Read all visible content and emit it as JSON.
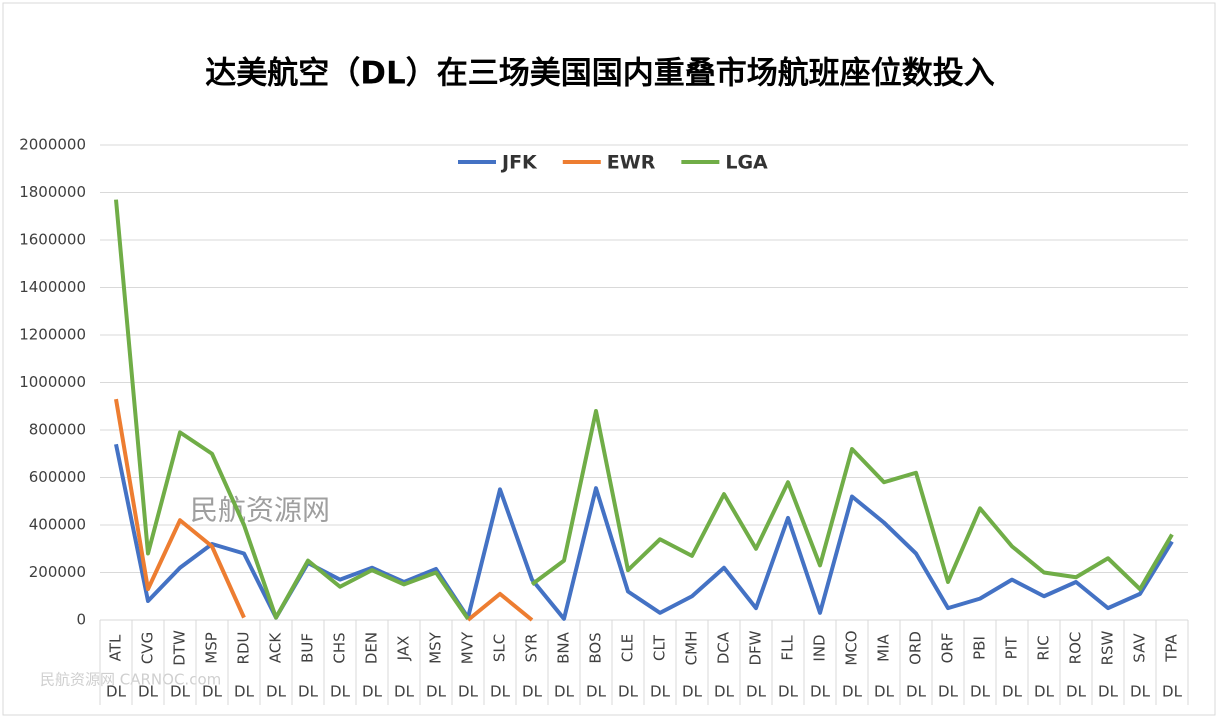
{
  "chart_data": {
    "type": "line",
    "title": "达美航空（DL）在三场美国国内重叠市场航班座位数投入",
    "watermark": "民航资源网",
    "watermark_2": "民航资源网 CARNOC.com",
    "categories": [
      "ATL",
      "CVG",
      "DTW",
      "MSP",
      "RDU",
      "ACK",
      "BUF",
      "CHS",
      "DEN",
      "JAX",
      "MSY",
      "MVY",
      "SLC",
      "SYR",
      "BNA",
      "BOS",
      "CLE",
      "CLT",
      "CMH",
      "DCA",
      "DFW",
      "FLL",
      "IND",
      "MCO",
      "MIA",
      "ORD",
      "ORF",
      "PBI",
      "PIT",
      "RIC",
      "ROC",
      "RSW",
      "SAV",
      "TPA"
    ],
    "category_groups": [
      "DL",
      "DL",
      "DL",
      "DL",
      "DL",
      "DL",
      "DL",
      "DL",
      "DL",
      "DL",
      "DL",
      "DL",
      "DL",
      "DL",
      "DL",
      "DL",
      "DL",
      "DL",
      "DL",
      "DL",
      "DL",
      "DL",
      "DL",
      "DL",
      "DL",
      "DL",
      "DL",
      "DL",
      "DL",
      "DL",
      "DL",
      "DL",
      "DL",
      "DL"
    ],
    "series": [
      {
        "name": "JFK",
        "color": "#4472c4",
        "values": [
          740000,
          80000,
          220000,
          320000,
          280000,
          10000,
          240000,
          170000,
          220000,
          160000,
          215000,
          10000,
          550000,
          170000,
          5000,
          555000,
          120000,
          30000,
          100000,
          220000,
          50000,
          430000,
          30000,
          520000,
          410000,
          280000,
          50000,
          90000,
          170000,
          100000,
          160000,
          50000,
          110000,
          330000
        ]
      },
      {
        "name": "EWR",
        "color": "#ed7d31",
        "values": [
          930000,
          130000,
          420000,
          310000,
          10000,
          null,
          null,
          null,
          null,
          null,
          null,
          0,
          110000,
          0,
          null,
          null,
          null,
          null,
          null,
          null,
          null,
          null,
          null,
          null,
          null,
          null,
          null,
          null,
          null,
          null,
          null,
          null,
          null,
          null
        ]
      },
      {
        "name": "LGA",
        "color": "#70ad47",
        "values": [
          1770000,
          280000,
          790000,
          700000,
          400000,
          10000,
          250000,
          140000,
          210000,
          150000,
          200000,
          5000,
          null,
          150000,
          250000,
          880000,
          210000,
          340000,
          270000,
          530000,
          300000,
          580000,
          230000,
          720000,
          580000,
          620000,
          160000,
          470000,
          310000,
          200000,
          180000,
          260000,
          130000,
          360000
        ]
      }
    ],
    "ylim": [
      0,
      2000000
    ],
    "yticks": [
      0,
      200000,
      400000,
      600000,
      800000,
      1000000,
      1200000,
      1400000,
      1600000,
      1800000,
      2000000
    ],
    "grid": true,
    "legend": "top"
  }
}
